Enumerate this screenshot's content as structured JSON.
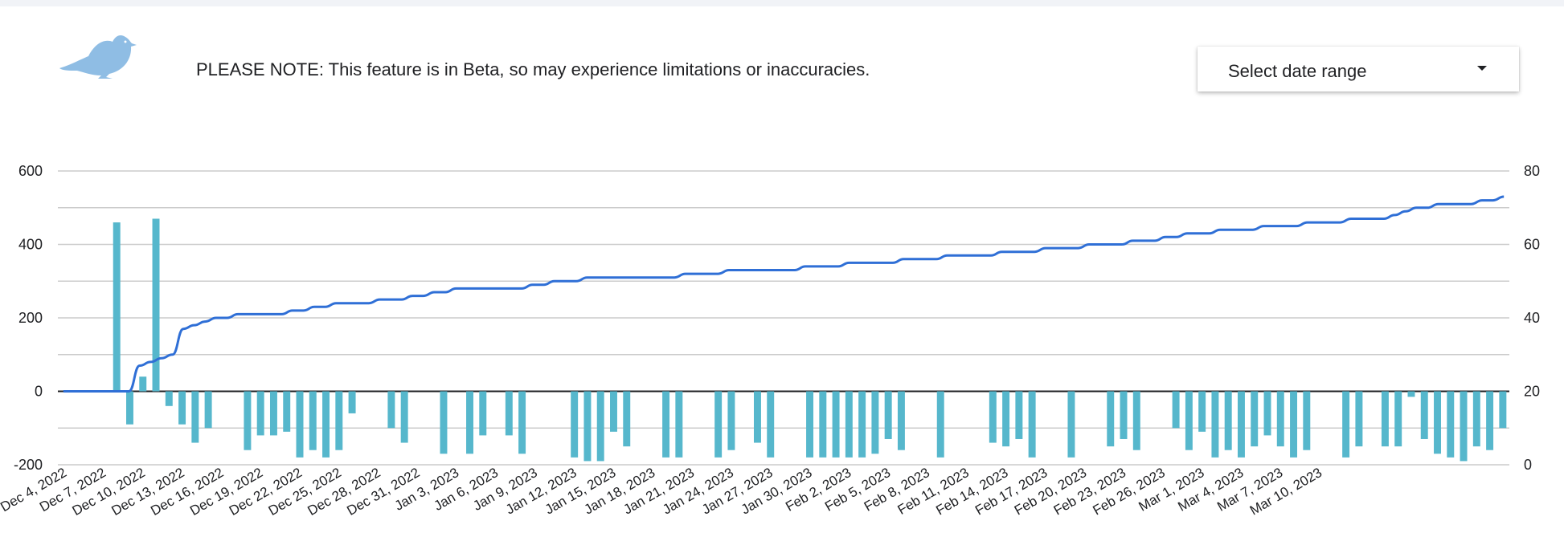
{
  "notice": "PLEASE NOTE: This feature is in Beta, so may experience limitations or inaccuracies.",
  "date_range": {
    "label": "Select date range"
  },
  "icons": {
    "logo": "bird-icon",
    "dropdown": "chevron-down-icon"
  },
  "colors": {
    "bars": "#56b7cc",
    "line": "#2f6fd6",
    "logo": "#8fbde4"
  },
  "chart_data": {
    "type": "bar",
    "combo": "bar+line",
    "title": "",
    "xlabel": "",
    "ylabel": "",
    "ylim_left": [
      -200,
      600
    ],
    "ylim_right": [
      0,
      80
    ],
    "yticks_left": [
      -200,
      0,
      200,
      400,
      600
    ],
    "yticks_right": [
      0,
      20,
      40,
      60,
      80
    ],
    "grid": true,
    "x_tick_labels": [
      "Dec 4, 2022",
      "Dec 7, 2022",
      "Dec 10, 2022",
      "Dec 13, 2022",
      "Dec 16, 2022",
      "Dec 19, 2022",
      "Dec 22, 2022",
      "Dec 25, 2022",
      "Dec 28, 2022",
      "Dec 31, 2022",
      "Jan 3, 2023",
      "Jan 6, 2023",
      "Jan 9, 2023",
      "Jan 12, 2023",
      "Jan 15, 2023",
      "Jan 18, 2023",
      "Jan 21, 2023",
      "Jan 24, 2023",
      "Jan 27, 2023",
      "Jan 30, 2023",
      "Feb 2, 2023",
      "Feb 5, 2023",
      "Feb 8, 2023",
      "Feb 11, 2023",
      "Feb 14, 2023",
      "Feb 17, 2023",
      "Feb 20, 2023",
      "Feb 23, 2023",
      "Feb 26, 2023",
      "Mar 1, 2023",
      "Mar 4, 2023",
      "Mar 7, 2023",
      "Mar 10, 2023"
    ],
    "start_date": "Dec 4, 2022",
    "series": [
      {
        "type": "bar",
        "axis": "left",
        "values": [
          0,
          0,
          0,
          0,
          460,
          -90,
          40,
          470,
          -40,
          -90,
          -140,
          -100,
          0,
          0,
          -160,
          -120,
          -120,
          -110,
          -180,
          -160,
          -180,
          -160,
          -60,
          0,
          0,
          -100,
          -140,
          0,
          0,
          -170,
          0,
          -170,
          -120,
          0,
          -120,
          -170,
          0,
          0,
          0,
          -180,
          -190,
          -190,
          -110,
          -150,
          0,
          0,
          -180,
          -180,
          0,
          0,
          -180,
          -160,
          0,
          -140,
          -180,
          0,
          0,
          -180,
          -180,
          -180,
          -180,
          -180,
          -170,
          -130,
          -160,
          0,
          0,
          -180,
          0,
          0,
          0,
          -140,
          -150,
          -130,
          -180,
          0,
          0,
          -180,
          0,
          0,
          -150,
          -130,
          -160,
          0,
          0,
          -100,
          -160,
          -110,
          -180,
          -160,
          -180,
          -150,
          -120,
          -150,
          -180,
          -160,
          0,
          0,
          -180,
          -150,
          0,
          -150,
          -150,
          -15,
          -130,
          -170,
          -180,
          -190,
          -150,
          -160,
          -100
        ]
      },
      {
        "type": "line",
        "axis": "right",
        "values": [
          20,
          20,
          20,
          20,
          20,
          20,
          20,
          27,
          28,
          29,
          30,
          37,
          38,
          39,
          40,
          40,
          41,
          41,
          41,
          41,
          41,
          42,
          42,
          43,
          43,
          44,
          44,
          44,
          44,
          45,
          45,
          45,
          46,
          46,
          47,
          47,
          48,
          48,
          48,
          48,
          48,
          48,
          48,
          49,
          49,
          50,
          50,
          50,
          51,
          51,
          51,
          51,
          51,
          51,
          51,
          51,
          51,
          52,
          52,
          52,
          52,
          53,
          53,
          53,
          53,
          53,
          53,
          53,
          54,
          54,
          54,
          54,
          55,
          55,
          55,
          55,
          55,
          56,
          56,
          56,
          56,
          57,
          57,
          57,
          57,
          57,
          58,
          58,
          58,
          58,
          59,
          59,
          59,
          59,
          60,
          60,
          60,
          60,
          61,
          61,
          61,
          62,
          62,
          63,
          63,
          63,
          64,
          64,
          64,
          64,
          65,
          65,
          65,
          65,
          66,
          66,
          66,
          66,
          67,
          67,
          67,
          67,
          68,
          69,
          70,
          70,
          71,
          71,
          71,
          71,
          72,
          72,
          73
        ]
      }
    ]
  }
}
